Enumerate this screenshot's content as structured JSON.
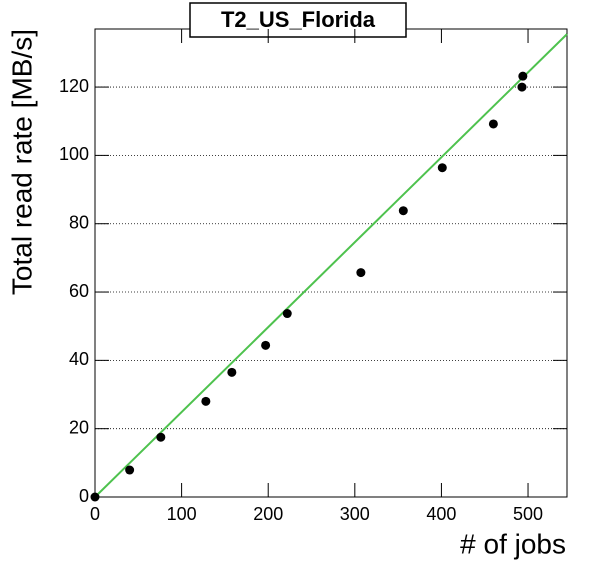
{
  "chart_data": {
    "type": "scatter",
    "title": "T2_US_Florida",
    "x_label": "# of jobs",
    "y_label": "Total read rate [MB/s]",
    "xlim": [
      0,
      545
    ],
    "ylim": [
      0,
      137
    ],
    "xticks": [
      0,
      100,
      200,
      300,
      400,
      500
    ],
    "yticks": [
      0,
      20,
      40,
      60,
      80,
      100,
      120
    ],
    "grid": true,
    "points": {
      "color": "#000000",
      "x": [
        0,
        40,
        76,
        128,
        158,
        197,
        222,
        307,
        356,
        401,
        460,
        493,
        494
      ],
      "y": [
        0,
        7.9,
        17.5,
        28,
        36.5,
        44.4,
        53.7,
        65.7,
        83.8,
        96.4,
        109.2,
        120,
        123.2
      ]
    },
    "fit_line": {
      "color": "#4ec24e",
      "x": [
        0,
        545
      ],
      "y": [
        0,
        135.5
      ]
    }
  }
}
